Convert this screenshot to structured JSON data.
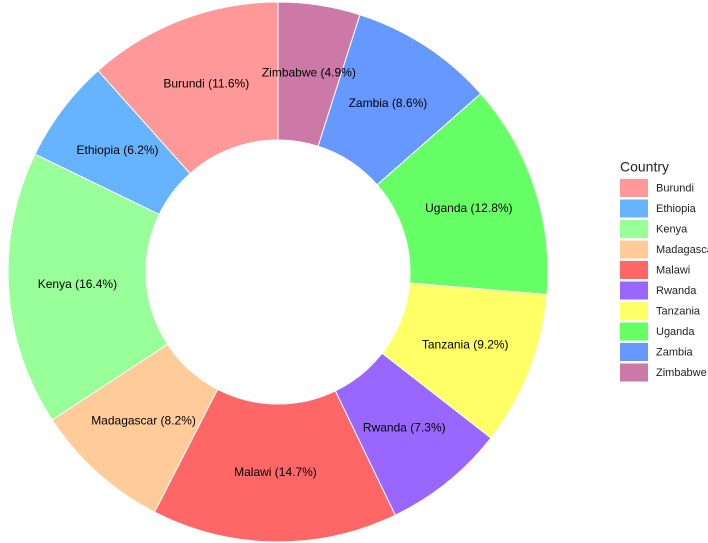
{
  "chart_data": {
    "type": "donut",
    "legend_title": "Country",
    "categories": [
      "Burundi",
      "Ethiopia",
      "Kenya",
      "Madagascar",
      "Malawi",
      "Rwanda",
      "Tanzania",
      "Uganda",
      "Zambia",
      "Zimbabwe"
    ],
    "values": [
      11.6,
      6.2,
      16.4,
      8.2,
      14.7,
      7.3,
      9.2,
      12.8,
      8.6,
      4.9
    ],
    "value_labels": [
      "Burundi (11.6%)",
      "Ethiopia (6.2%)",
      "Kenya (16.4%)",
      "Madagascar (8.2%)",
      "Malawi (14.7%)",
      "Rwanda (7.3%)",
      "Tanzania (9.2%)",
      "Uganda (12.8%)",
      "Zambia (8.6%)",
      "Zimbabwe (4.9%)"
    ],
    "colors": [
      "#ff9999",
      "#66b3ff",
      "#99ff99",
      "#ffcc99",
      "#ff6666",
      "#9966ff",
      "#ffff66",
      "#66ff66",
      "#6699ff",
      "#cc79a7"
    ],
    "legend_position": "right"
  }
}
